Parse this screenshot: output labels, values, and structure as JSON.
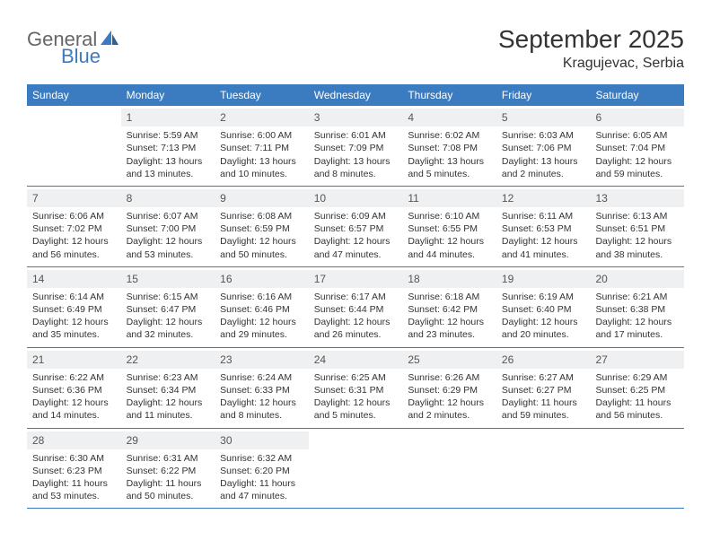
{
  "logo": {
    "text1": "General",
    "text2": "Blue",
    "sail_color": "#3b7bbf"
  },
  "title": "September 2025",
  "location": "Kragujevac, Serbia",
  "daynames": [
    "Sunday",
    "Monday",
    "Tuesday",
    "Wednesday",
    "Thursday",
    "Friday",
    "Saturday"
  ],
  "header_bg": "#3b7bbf",
  "cell_header_bg": "#eef0f2",
  "weeks": [
    [
      {
        "n": "",
        "sr": "",
        "ss": "",
        "dl": ""
      },
      {
        "n": "1",
        "sr": "5:59 AM",
        "ss": "7:13 PM",
        "dl": "13 hours and 13 minutes."
      },
      {
        "n": "2",
        "sr": "6:00 AM",
        "ss": "7:11 PM",
        "dl": "13 hours and 10 minutes."
      },
      {
        "n": "3",
        "sr": "6:01 AM",
        "ss": "7:09 PM",
        "dl": "13 hours and 8 minutes."
      },
      {
        "n": "4",
        "sr": "6:02 AM",
        "ss": "7:08 PM",
        "dl": "13 hours and 5 minutes."
      },
      {
        "n": "5",
        "sr": "6:03 AM",
        "ss": "7:06 PM",
        "dl": "13 hours and 2 minutes."
      },
      {
        "n": "6",
        "sr": "6:05 AM",
        "ss": "7:04 PM",
        "dl": "12 hours and 59 minutes."
      }
    ],
    [
      {
        "n": "7",
        "sr": "6:06 AM",
        "ss": "7:02 PM",
        "dl": "12 hours and 56 minutes."
      },
      {
        "n": "8",
        "sr": "6:07 AM",
        "ss": "7:00 PM",
        "dl": "12 hours and 53 minutes."
      },
      {
        "n": "9",
        "sr": "6:08 AM",
        "ss": "6:59 PM",
        "dl": "12 hours and 50 minutes."
      },
      {
        "n": "10",
        "sr": "6:09 AM",
        "ss": "6:57 PM",
        "dl": "12 hours and 47 minutes."
      },
      {
        "n": "11",
        "sr": "6:10 AM",
        "ss": "6:55 PM",
        "dl": "12 hours and 44 minutes."
      },
      {
        "n": "12",
        "sr": "6:11 AM",
        "ss": "6:53 PM",
        "dl": "12 hours and 41 minutes."
      },
      {
        "n": "13",
        "sr": "6:13 AM",
        "ss": "6:51 PM",
        "dl": "12 hours and 38 minutes."
      }
    ],
    [
      {
        "n": "14",
        "sr": "6:14 AM",
        "ss": "6:49 PM",
        "dl": "12 hours and 35 minutes."
      },
      {
        "n": "15",
        "sr": "6:15 AM",
        "ss": "6:47 PM",
        "dl": "12 hours and 32 minutes."
      },
      {
        "n": "16",
        "sr": "6:16 AM",
        "ss": "6:46 PM",
        "dl": "12 hours and 29 minutes."
      },
      {
        "n": "17",
        "sr": "6:17 AM",
        "ss": "6:44 PM",
        "dl": "12 hours and 26 minutes."
      },
      {
        "n": "18",
        "sr": "6:18 AM",
        "ss": "6:42 PM",
        "dl": "12 hours and 23 minutes."
      },
      {
        "n": "19",
        "sr": "6:19 AM",
        "ss": "6:40 PM",
        "dl": "12 hours and 20 minutes."
      },
      {
        "n": "20",
        "sr": "6:21 AM",
        "ss": "6:38 PM",
        "dl": "12 hours and 17 minutes."
      }
    ],
    [
      {
        "n": "21",
        "sr": "6:22 AM",
        "ss": "6:36 PM",
        "dl": "12 hours and 14 minutes."
      },
      {
        "n": "22",
        "sr": "6:23 AM",
        "ss": "6:34 PM",
        "dl": "12 hours and 11 minutes."
      },
      {
        "n": "23",
        "sr": "6:24 AM",
        "ss": "6:33 PM",
        "dl": "12 hours and 8 minutes."
      },
      {
        "n": "24",
        "sr": "6:25 AM",
        "ss": "6:31 PM",
        "dl": "12 hours and 5 minutes."
      },
      {
        "n": "25",
        "sr": "6:26 AM",
        "ss": "6:29 PM",
        "dl": "12 hours and 2 minutes."
      },
      {
        "n": "26",
        "sr": "6:27 AM",
        "ss": "6:27 PM",
        "dl": "11 hours and 59 minutes."
      },
      {
        "n": "27",
        "sr": "6:29 AM",
        "ss": "6:25 PM",
        "dl": "11 hours and 56 minutes."
      }
    ],
    [
      {
        "n": "28",
        "sr": "6:30 AM",
        "ss": "6:23 PM",
        "dl": "11 hours and 53 minutes."
      },
      {
        "n": "29",
        "sr": "6:31 AM",
        "ss": "6:22 PM",
        "dl": "11 hours and 50 minutes."
      },
      {
        "n": "30",
        "sr": "6:32 AM",
        "ss": "6:20 PM",
        "dl": "11 hours and 47 minutes."
      },
      {
        "n": "",
        "sr": "",
        "ss": "",
        "dl": ""
      },
      {
        "n": "",
        "sr": "",
        "ss": "",
        "dl": ""
      },
      {
        "n": "",
        "sr": "",
        "ss": "",
        "dl": ""
      },
      {
        "n": "",
        "sr": "",
        "ss": "",
        "dl": ""
      }
    ]
  ],
  "labels": {
    "sunrise": "Sunrise:",
    "sunset": "Sunset:",
    "daylight": "Daylight:"
  }
}
